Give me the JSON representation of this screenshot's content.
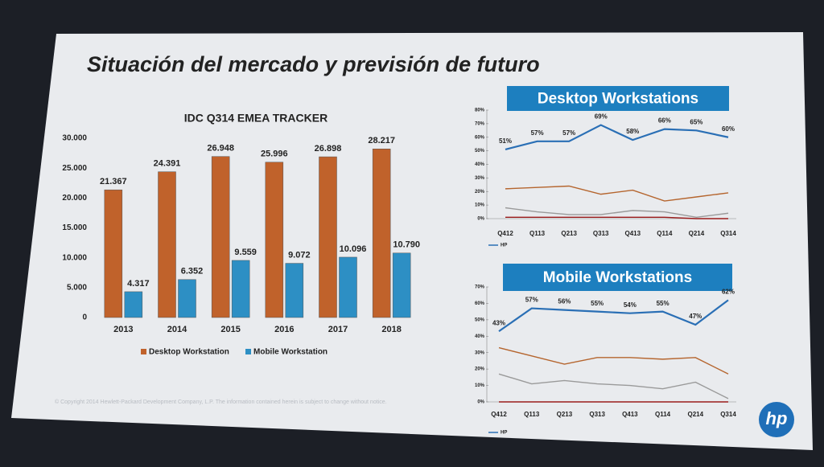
{
  "slide": {
    "title": "Situación del mercado y previsión de futuro",
    "footer": "© Copyright 2014 Hewlett-Packard Development Company, L.P. The information contained herein is subject to change without notice.",
    "logo": "hp"
  },
  "chart_data": [
    {
      "type": "bar",
      "title": "IDC Q314 EMEA TRACKER",
      "categories": [
        "2013",
        "2014",
        "2015",
        "2016",
        "2017",
        "2018"
      ],
      "series": [
        {
          "name": "Desktop Workstation",
          "color": "#c0622b",
          "values": [
            21367,
            24391,
            26948,
            25996,
            26898,
            28217
          ],
          "value_labels": [
            "21.367",
            "24.391",
            "26.948",
            "25.996",
            "26.898",
            "28.217"
          ]
        },
        {
          "name": "Mobile Workstation",
          "color": "#2d8fc4",
          "values": [
            4317,
            6352,
            9559,
            9072,
            10096,
            10790
          ],
          "value_labels": [
            "4.317",
            "6.352",
            "9.559",
            "9.072",
            "10.096",
            "10.790"
          ]
        }
      ],
      "ylim": [
        0,
        30000
      ],
      "yticks": [
        0,
        {
          "value": 5000,
          "label": "5.000"
        },
        {
          "value": 10000,
          "label": "10.000"
        },
        {
          "value": 15000,
          "label": "15.000"
        },
        {
          "value": 20000,
          "label": "20.000"
        },
        {
          "value": 25000,
          "label": "25.000"
        },
        {
          "value": 30000,
          "label": "30.000"
        }
      ]
    },
    {
      "type": "line",
      "title": "Desktop Workstations",
      "categories": [
        "Q412",
        "Q113",
        "Q213",
        "Q313",
        "Q413",
        "Q114",
        "Q214",
        "Q314"
      ],
      "series": [
        {
          "name": "HP",
          "color": "#2a6fb5",
          "values": [
            51,
            57,
            57,
            69,
            58,
            66,
            65,
            60
          ],
          "value_labels": [
            "51%",
            "57%",
            "57%",
            "69%",
            "58%",
            "66%",
            "65%",
            "60%"
          ]
        },
        {
          "color": "#b5652e",
          "values": [
            22,
            23,
            24,
            18,
            21,
            13,
            16,
            19
          ]
        },
        {
          "color": "#9a9a9a",
          "values": [
            8,
            5,
            3,
            3,
            6,
            5,
            1,
            4
          ]
        },
        {
          "color": "#9b1c1c",
          "values": [
            1,
            1,
            1,
            1,
            1,
            1,
            0,
            0
          ]
        }
      ],
      "ylim": [
        0,
        80
      ],
      "yticks": [
        {
          "value": 0,
          "label": "0%"
        },
        {
          "value": 10,
          "label": "10%"
        },
        {
          "value": 20,
          "label": "20%"
        },
        {
          "value": 30,
          "label": "30%"
        },
        {
          "value": 40,
          "label": "40%"
        },
        {
          "value": 50,
          "label": "50%"
        },
        {
          "value": 60,
          "label": "60%"
        },
        {
          "value": 70,
          "label": "70%"
        },
        {
          "value": 80,
          "label": "80%"
        }
      ]
    },
    {
      "type": "line",
      "title": "Mobile Workstations",
      "categories": [
        "Q412",
        "Q113",
        "Q213",
        "Q313",
        "Q413",
        "Q114",
        "Q214",
        "Q314"
      ],
      "series": [
        {
          "name": "HP",
          "color": "#2a6fb5",
          "values": [
            43,
            57,
            56,
            55,
            54,
            55,
            47,
            62
          ],
          "value_labels": [
            "43%",
            "57%",
            "56%",
            "55%",
            "54%",
            "55%",
            "47%",
            "62%"
          ]
        },
        {
          "color": "#b5652e",
          "values": [
            33,
            28,
            23,
            27,
            27,
            26,
            27,
            17
          ]
        },
        {
          "color": "#9a9a9a",
          "values": [
            17,
            11,
            13,
            11,
            10,
            8,
            12,
            2
          ]
        },
        {
          "color": "#9b1c1c",
          "values": [
            0,
            0,
            0,
            0,
            0,
            0,
            0,
            0
          ]
        }
      ],
      "ylim": [
        0,
        70
      ],
      "yticks": [
        {
          "value": 0,
          "label": "0%"
        },
        {
          "value": 10,
          "label": "10%"
        },
        {
          "value": 20,
          "label": "20%"
        },
        {
          "value": 30,
          "label": "30%"
        },
        {
          "value": 40,
          "label": "40%"
        },
        {
          "value": 50,
          "label": "50%"
        },
        {
          "value": 60,
          "label": "60%"
        },
        {
          "value": 70,
          "label": "70%"
        }
      ]
    }
  ]
}
